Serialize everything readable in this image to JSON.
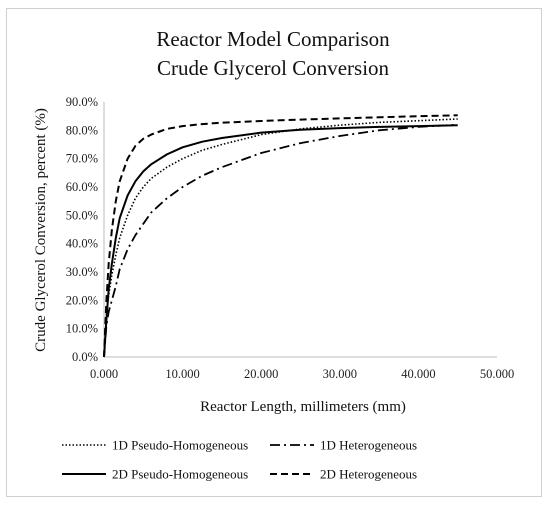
{
  "chart_data": {
    "type": "line",
    "title": [
      "Reactor Model Comparison",
      "Crude Glycerol Conversion"
    ],
    "xlabel": "Reactor Length, millimeters (mm)",
    "ylabel": "Crude Glycerol Conversion, percent (%)",
    "xlim": [
      0,
      50
    ],
    "ylim": [
      0,
      90
    ],
    "xticks": [
      0,
      10,
      20,
      30,
      40,
      50
    ],
    "xtick_labels": [
      "0.000",
      "10.000",
      "20.000",
      "30.000",
      "40.000",
      "50.000"
    ],
    "yticks": [
      0,
      10,
      20,
      30,
      40,
      50,
      60,
      70,
      80,
      90
    ],
    "ytick_labels": [
      "0.0%",
      "10.0%",
      "20.0%",
      "30.0%",
      "40.0%",
      "50.0%",
      "60.0%",
      "70.0%",
      "80.0%",
      "90.0%"
    ],
    "grid": false,
    "legend_position": "bottom",
    "series": [
      {
        "name": "1D Pseudo-Homogeneous",
        "style": "dotted",
        "color": "#000000",
        "x": [
          0,
          0.3,
          0.6,
          1,
          1.5,
          2,
          3,
          4,
          5,
          6,
          8,
          10,
          12.5,
          15,
          20,
          25,
          30,
          35,
          40,
          45
        ],
        "y": [
          0,
          15,
          22,
          29,
          36,
          42,
          50,
          56,
          60,
          63,
          67,
          70,
          73,
          75,
          78.5,
          80.5,
          81.8,
          82.8,
          83.4,
          84
        ]
      },
      {
        "name": "1D Heterogeneous",
        "style": "dashdot",
        "color": "#000000",
        "x": [
          0,
          0.3,
          0.6,
          1,
          1.5,
          2,
          3,
          4,
          5,
          6,
          8,
          10,
          12.5,
          15,
          20,
          25,
          30,
          35,
          40,
          45
        ],
        "y": [
          0,
          11,
          16,
          20,
          25,
          31,
          38,
          43,
          47,
          51,
          56,
          60,
          64,
          67,
          72,
          75.5,
          78,
          80,
          81.2,
          82
        ]
      },
      {
        "name": "2D Pseudo-Homogeneous",
        "style": "solid",
        "color": "#000000",
        "x": [
          0,
          0.3,
          0.6,
          1,
          1.5,
          2,
          3,
          4,
          5,
          6,
          8,
          10,
          12.5,
          15,
          20,
          25,
          30,
          35,
          40,
          45
        ],
        "y": [
          0,
          13,
          24,
          33,
          42,
          49,
          57,
          62,
          65.5,
          68,
          71.5,
          74,
          76,
          77.3,
          79.2,
          80.2,
          80.8,
          81.2,
          81.5,
          81.8
        ]
      },
      {
        "name": "2D Heterogeneous",
        "style": "dashed",
        "color": "#000000",
        "x": [
          0,
          0.3,
          0.6,
          1,
          1.5,
          2,
          3,
          4,
          5,
          6,
          8,
          10,
          12.5,
          15,
          20,
          25,
          30,
          35,
          40,
          45
        ],
        "y": [
          0,
          20,
          33,
          45,
          55,
          62,
          70,
          74.5,
          77,
          78.5,
          80.5,
          81.5,
          82.2,
          82.7,
          83.3,
          83.8,
          84.2,
          84.6,
          85,
          85.3
        ]
      }
    ]
  }
}
